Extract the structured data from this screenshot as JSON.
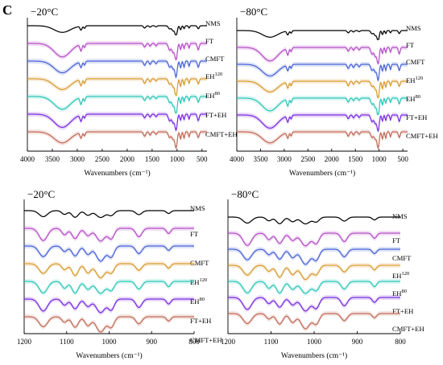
{
  "figure": {
    "panel_label": "C"
  },
  "colors": {
    "NMS": "#000000",
    "FT": "#b64fc8",
    "CMFT": "#4a63d6",
    "EH120": "#d79b32",
    "EH80": "#2fc6b8",
    "FT+EH": "#7a2ee0",
    "CMFT+EH": "#c06a58"
  },
  "chart_data": [
    {
      "type": "line",
      "title": "−20°C",
      "xlabel": "Wavenumbers (cm⁻¹)",
      "x_range": [
        4000,
        400
      ],
      "x_reversed": true,
      "x_ticks": [
        4000,
        3500,
        3000,
        2500,
        2000,
        1500,
        1000,
        500
      ],
      "y_axis_visible": false,
      "grid": false,
      "legend": "labels at right end of each trace",
      "series": [
        {
          "name": "NMS",
          "label_main": "NMS",
          "label_sup": ""
        },
        {
          "name": "FT",
          "label_main": "FT",
          "label_sup": ""
        },
        {
          "name": "CMFT",
          "label_main": "CMFT",
          "label_sup": ""
        },
        {
          "name": "EH120",
          "label_main": "EH",
          "label_sup": "120"
        },
        {
          "name": "EH80",
          "label_main": "EH",
          "label_sup": "80"
        },
        {
          "name": "FT+EH",
          "label_main": "FT+EH",
          "label_sup": ""
        },
        {
          "name": "CMFT+EH",
          "label_main": "CMFT+EH",
          "label_sup": ""
        }
      ],
      "bands": [
        {
          "center": 3300,
          "width": 230,
          "depth": 1.0
        },
        {
          "center": 2925,
          "width": 28,
          "depth": 0.55
        },
        {
          "center": 2855,
          "width": 22,
          "depth": 0.35
        },
        {
          "center": 1650,
          "width": 30,
          "depth": 0.35
        },
        {
          "center": 1540,
          "width": 25,
          "depth": 0.25
        },
        {
          "center": 1420,
          "width": 25,
          "depth": 0.2
        },
        {
          "center": 1150,
          "width": 35,
          "depth": 0.5
        },
        {
          "center": 1080,
          "width": 35,
          "depth": 0.7
        },
        {
          "center": 1020,
          "width": 30,
          "depth": 1.5
        },
        {
          "center": 930,
          "width": 20,
          "depth": 0.6
        },
        {
          "center": 860,
          "width": 18,
          "depth": 0.5
        },
        {
          "center": 760,
          "width": 18,
          "depth": 0.4
        },
        {
          "center": 575,
          "width": 25,
          "depth": 0.5
        }
      ]
    },
    {
      "type": "line",
      "title": "−80°C",
      "xlabel": "Wavenumbers (cm⁻¹)",
      "x_range": [
        4000,
        400
      ],
      "x_reversed": true,
      "x_ticks": [
        4000,
        3500,
        3000,
        2500,
        2000,
        1500,
        1000,
        500
      ],
      "y_axis_visible": false,
      "grid": false,
      "legend": "labels at right end of each trace",
      "series": [
        {
          "name": "NMS",
          "label_main": "NMS",
          "label_sup": ""
        },
        {
          "name": "FT",
          "label_main": "FT",
          "label_sup": ""
        },
        {
          "name": "CMFT",
          "label_main": "CMFT",
          "label_sup": ""
        },
        {
          "name": "EH120",
          "label_main": "EH",
          "label_sup": "120"
        },
        {
          "name": "EH80",
          "label_main": "EH",
          "label_sup": "80"
        },
        {
          "name": "FT+EH",
          "label_main": "FT+EH",
          "label_sup": ""
        },
        {
          "name": "CMFT+EH",
          "label_main": "CMFT+EH",
          "label_sup": ""
        }
      ],
      "bands": [
        {
          "center": 3300,
          "width": 230,
          "depth": 1.0
        },
        {
          "center": 2925,
          "width": 28,
          "depth": 0.55
        },
        {
          "center": 2855,
          "width": 22,
          "depth": 0.35
        },
        {
          "center": 1650,
          "width": 30,
          "depth": 0.35
        },
        {
          "center": 1540,
          "width": 25,
          "depth": 0.25
        },
        {
          "center": 1420,
          "width": 25,
          "depth": 0.2
        },
        {
          "center": 1150,
          "width": 35,
          "depth": 0.5
        },
        {
          "center": 1080,
          "width": 35,
          "depth": 0.7
        },
        {
          "center": 1020,
          "width": 30,
          "depth": 1.5
        },
        {
          "center": 930,
          "width": 20,
          "depth": 0.6
        },
        {
          "center": 860,
          "width": 18,
          "depth": 0.5
        },
        {
          "center": 760,
          "width": 18,
          "depth": 0.4
        },
        {
          "center": 575,
          "width": 25,
          "depth": 0.5
        }
      ]
    },
    {
      "type": "line",
      "title": "−20°C",
      "xlabel": "Wavenumbers (cm⁻¹)",
      "x_range": [
        1200,
        800
      ],
      "x_reversed": true,
      "x_ticks": [
        1200,
        1100,
        1000,
        900,
        800
      ],
      "y_axis_visible": false,
      "grid": false,
      "legend": "labels at right end of each trace",
      "series": [
        {
          "name": "NMS",
          "label_main": "NMS",
          "label_sup": ""
        },
        {
          "name": "FT",
          "label_main": "FT",
          "label_sup": ""
        },
        {
          "name": "CMFT",
          "label_main": "CMFT",
          "label_sup": ""
        },
        {
          "name": "EH120",
          "label_main": "EH",
          "label_sup": "120"
        },
        {
          "name": "EH80",
          "label_main": "EH",
          "label_sup": "80"
        },
        {
          "name": "FT+EH",
          "label_main": "FT+EH",
          "label_sup": ""
        },
        {
          "name": "CMFT+EH",
          "label_main": "CMFT+EH",
          "label_sup": ""
        }
      ],
      "bands": [
        {
          "center": 1155,
          "width": 14,
          "depth": 0.8
        },
        {
          "center": 1105,
          "width": 9,
          "depth": 0.45
        },
        {
          "center": 1080,
          "width": 11,
          "depth": 0.8
        },
        {
          "center": 1050,
          "width": 10,
          "depth": 0.6
        },
        {
          "center": 1020,
          "width": 15,
          "depth": 1.0
        },
        {
          "center": 995,
          "width": 10,
          "depth": 0.7
        },
        {
          "center": 930,
          "width": 10,
          "depth": 0.55
        },
        {
          "center": 860,
          "width": 7,
          "depth": 0.35
        }
      ]
    },
    {
      "type": "line",
      "title": "−80°C",
      "xlabel": "Wavenumbers (cm⁻¹)",
      "x_range": [
        1200,
        800
      ],
      "x_reversed": true,
      "x_ticks": [
        1200,
        1100,
        1000,
        900,
        800
      ],
      "y_axis_visible": false,
      "grid": false,
      "legend": "labels at right end of each trace",
      "series": [
        {
          "name": "NMS",
          "label_main": "NMS",
          "label_sup": ""
        },
        {
          "name": "FT",
          "label_main": "FT",
          "label_sup": ""
        },
        {
          "name": "CMFT",
          "label_main": "CMFT",
          "label_sup": ""
        },
        {
          "name": "EH120",
          "label_main": "EH",
          "label_sup": "120"
        },
        {
          "name": "EH80",
          "label_main": "EH",
          "label_sup": "80"
        },
        {
          "name": "FT+EH",
          "label_main": "FT+EH",
          "label_sup": ""
        },
        {
          "name": "CMFT+EH",
          "label_main": "CMFT+EH",
          "label_sup": ""
        }
      ],
      "bands": [
        {
          "center": 1155,
          "width": 14,
          "depth": 0.8
        },
        {
          "center": 1105,
          "width": 9,
          "depth": 0.45
        },
        {
          "center": 1080,
          "width": 11,
          "depth": 0.8
        },
        {
          "center": 1050,
          "width": 10,
          "depth": 0.6
        },
        {
          "center": 1020,
          "width": 15,
          "depth": 1.0
        },
        {
          "center": 995,
          "width": 10,
          "depth": 0.7
        },
        {
          "center": 930,
          "width": 10,
          "depth": 0.55
        },
        {
          "center": 860,
          "width": 7,
          "depth": 0.35
        }
      ]
    }
  ]
}
